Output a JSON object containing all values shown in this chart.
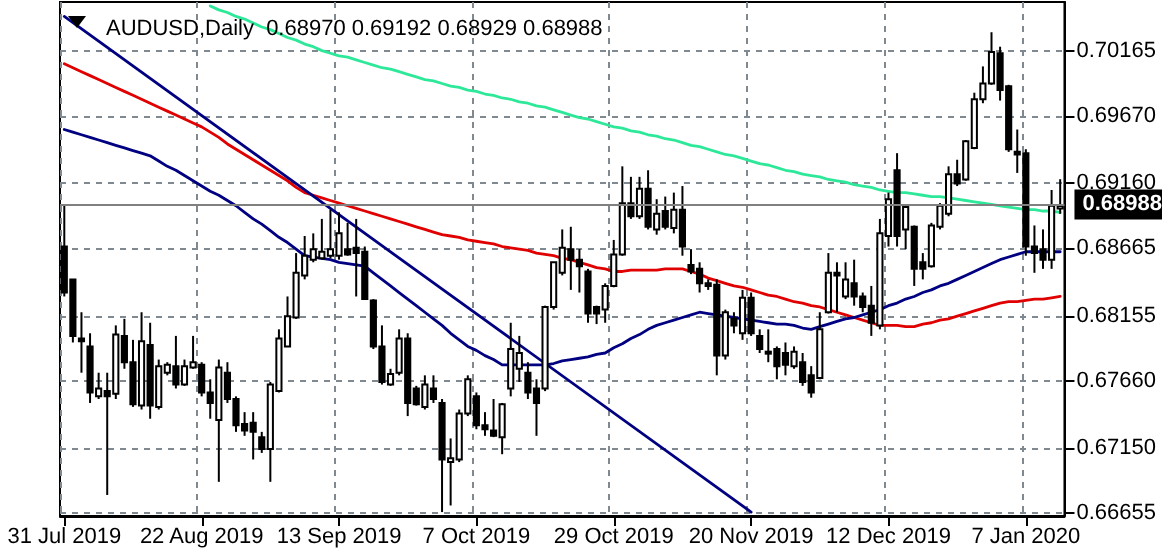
{
  "chart_data": {
    "type": "candlestick",
    "title": "AUDUSD,Daily  0.68970 0.69192 0.68929 0.68988",
    "categories": [
      "31 Jul 2019",
      null,
      null,
      null,
      null,
      null,
      null,
      null,
      null,
      null,
      null,
      null,
      null,
      null,
      null,
      null,
      "22 Aug 2019",
      null,
      null,
      null,
      null,
      null,
      null,
      null,
      null,
      null,
      null,
      null,
      null,
      null,
      null,
      null,
      "13 Sep 2019",
      null,
      null,
      null,
      null,
      null,
      null,
      null,
      null,
      null,
      null,
      null,
      null,
      null,
      null,
      null,
      "7 Oct 2019",
      null,
      null,
      null,
      null,
      null,
      null,
      null,
      null,
      null,
      null,
      null,
      null,
      null,
      null,
      null,
      "29 Oct 2019",
      null,
      null,
      null,
      null,
      null,
      null,
      null,
      null,
      null,
      null,
      null,
      null,
      null,
      null,
      null,
      "20 Nov 2019",
      null,
      null,
      null,
      null,
      null,
      null,
      null,
      null,
      null,
      null,
      null,
      null,
      null,
      null,
      null,
      "12 Dec 2019",
      null,
      null,
      null,
      null,
      null,
      null,
      null,
      null,
      null,
      null,
      null,
      null,
      null,
      null,
      null,
      "7 Jan 2020",
      null,
      null,
      null,
      null
    ],
    "ohlc": [
      [
        0.6868,
        0.6899,
        0.683,
        0.6833
      ],
      [
        0.6843,
        0.6843,
        0.6795,
        0.68
      ],
      [
        0.6798,
        0.6818,
        0.6772,
        0.6796
      ],
      [
        0.6792,
        0.6802,
        0.6749,
        0.6757
      ],
      [
        0.6754,
        0.6772,
        0.6752,
        0.676
      ],
      [
        0.6758,
        0.6772,
        0.6679,
        0.6754
      ],
      [
        0.6756,
        0.6808,
        0.6752,
        0.6801
      ],
      [
        0.68,
        0.6813,
        0.6775,
        0.678
      ],
      [
        0.678,
        0.6797,
        0.6746,
        0.6748
      ],
      [
        0.6747,
        0.6818,
        0.6744,
        0.6796
      ],
      [
        0.6793,
        0.681,
        0.6737,
        0.6747
      ],
      [
        0.6746,
        0.6782,
        0.6744,
        0.6777
      ],
      [
        0.6772,
        0.678,
        0.677,
        0.6778
      ],
      [
        0.6777,
        0.68,
        0.676,
        0.6763
      ],
      [
        0.6763,
        0.6782,
        0.6762,
        0.6777
      ],
      [
        0.6776,
        0.68,
        0.6775,
        0.678
      ],
      [
        0.6778,
        0.678,
        0.6754,
        0.6757
      ],
      [
        0.6757,
        0.6767,
        0.6737,
        0.6749
      ],
      [
        0.6736,
        0.6782,
        0.6689,
        0.6776
      ],
      [
        0.6772,
        0.678,
        0.6749,
        0.6752
      ],
      [
        0.6752,
        0.6754,
        0.6727,
        0.6732
      ],
      [
        0.6733,
        0.6742,
        0.6724,
        0.6728
      ],
      [
        0.6734,
        0.6742,
        0.6706,
        0.6727
      ],
      [
        0.6723,
        0.6727,
        0.6711,
        0.6714
      ],
      [
        0.6714,
        0.6765,
        0.6689,
        0.6763
      ],
      [
        0.6758,
        0.6805,
        0.6757,
        0.6798
      ],
      [
        0.6792,
        0.683,
        0.6792,
        0.6815
      ],
      [
        0.6814,
        0.6863,
        0.6813,
        0.6848
      ],
      [
        0.6846,
        0.6876,
        0.6843,
        0.6861
      ],
      [
        0.6858,
        0.6878,
        0.6856,
        0.6866
      ],
      [
        0.6859,
        0.6889,
        0.6858,
        0.6864
      ],
      [
        0.6861,
        0.6896,
        0.6859,
        0.6866
      ],
      [
        0.6861,
        0.6894,
        0.6858,
        0.6878
      ],
      [
        0.6866,
        0.6886,
        0.6861,
        0.6862
      ],
      [
        0.6867,
        0.6889,
        0.683,
        0.6863
      ],
      [
        0.6864,
        0.6868,
        0.6828,
        0.6828
      ],
      [
        0.6827,
        0.6828,
        0.679,
        0.6792
      ],
      [
        0.6792,
        0.6808,
        0.6763,
        0.6765
      ],
      [
        0.6763,
        0.6775,
        0.6762,
        0.6771
      ],
      [
        0.6772,
        0.6805,
        0.677,
        0.6798
      ],
      [
        0.6798,
        0.6802,
        0.6739,
        0.6749
      ],
      [
        0.676,
        0.6762,
        0.6747,
        0.6748
      ],
      [
        0.6746,
        0.677,
        0.6744,
        0.6763
      ],
      [
        0.676,
        0.677,
        0.6749,
        0.6752
      ],
      [
        0.6749,
        0.6752,
        0.6666,
        0.6706
      ],
      [
        0.6704,
        0.6722,
        0.6671,
        0.6707
      ],
      [
        0.6706,
        0.6744,
        0.6704,
        0.6741
      ],
      [
        0.6741,
        0.677,
        0.6739,
        0.6767
      ],
      [
        0.6754,
        0.6757,
        0.6729,
        0.6732
      ],
      [
        0.6732,
        0.6742,
        0.6724,
        0.6729
      ],
      [
        0.6728,
        0.6752,
        0.6723,
        0.6724
      ],
      [
        0.6723,
        0.6749,
        0.671,
        0.6748
      ],
      [
        0.676,
        0.681,
        0.6754,
        0.679
      ],
      [
        0.6775,
        0.68,
        0.6765,
        0.6787
      ],
      [
        0.6772,
        0.678,
        0.6752,
        0.6757
      ],
      [
        0.676,
        0.6767,
        0.6724,
        0.6749
      ],
      [
        0.676,
        0.6823,
        0.6758,
        0.6822
      ],
      [
        0.6822,
        0.6856,
        0.682,
        0.6856
      ],
      [
        0.6848,
        0.6881,
        0.6846,
        0.6867
      ],
      [
        0.6866,
        0.6883,
        0.6835,
        0.6858
      ],
      [
        0.6858,
        0.6866,
        0.6833,
        0.6853
      ],
      [
        0.6849,
        0.6851,
        0.681,
        0.6817
      ],
      [
        0.6822,
        0.6823,
        0.6809,
        0.6817
      ],
      [
        0.682,
        0.684,
        0.681,
        0.6838
      ],
      [
        0.6838,
        0.6873,
        0.6837,
        0.6862
      ],
      [
        0.6862,
        0.6929,
        0.6861,
        0.6901
      ],
      [
        0.6901,
        0.6921,
        0.6889,
        0.6891
      ],
      [
        0.6891,
        0.6921,
        0.6889,
        0.6912
      ],
      [
        0.6912,
        0.6926,
        0.6881,
        0.6883
      ],
      [
        0.6881,
        0.6904,
        0.6877,
        0.6893
      ],
      [
        0.6895,
        0.6906,
        0.6881,
        0.6883
      ],
      [
        0.6882,
        0.6909,
        0.6878,
        0.6896
      ],
      [
        0.6896,
        0.6914,
        0.6861,
        0.6868
      ],
      [
        0.6854,
        0.6866,
        0.6847,
        0.6849
      ],
      [
        0.6851,
        0.6856,
        0.6833,
        0.684
      ],
      [
        0.684,
        0.6843,
        0.6835,
        0.6838
      ],
      [
        0.6839,
        0.6843,
        0.677,
        0.6785
      ],
      [
        0.6785,
        0.682,
        0.6782,
        0.6818
      ],
      [
        0.6813,
        0.6818,
        0.6802,
        0.6808
      ],
      [
        0.6802,
        0.6835,
        0.6797,
        0.6829
      ],
      [
        0.6829,
        0.6833,
        0.68,
        0.6802
      ],
      [
        0.68,
        0.6805,
        0.6787,
        0.679
      ],
      [
        0.6788,
        0.6805,
        0.678,
        0.6787
      ],
      [
        0.679,
        0.6792,
        0.6767,
        0.6777
      ],
      [
        0.6787,
        0.6795,
        0.677,
        0.6778
      ],
      [
        0.6777,
        0.6792,
        0.6775,
        0.6788
      ],
      [
        0.678,
        0.6787,
        0.6762,
        0.6765
      ],
      [
        0.677,
        0.6777,
        0.6753,
        0.6757
      ],
      [
        0.6768,
        0.6818,
        0.6767,
        0.6805
      ],
      [
        0.6818,
        0.6863,
        0.6817,
        0.6848
      ],
      [
        0.6848,
        0.6856,
        0.6818,
        0.6846
      ],
      [
        0.683,
        0.6856,
        0.6828,
        0.6843
      ],
      [
        0.684,
        0.6858,
        0.6823,
        0.683
      ],
      [
        0.683,
        0.6833,
        0.6818,
        0.6822
      ],
      [
        0.6823,
        0.6838,
        0.68,
        0.681
      ],
      [
        0.6808,
        0.6889,
        0.6805,
        0.6878
      ],
      [
        0.6876,
        0.6909,
        0.6868,
        0.6904
      ],
      [
        0.6926,
        0.6939,
        0.6868,
        0.6876
      ],
      [
        0.6881,
        0.6899,
        0.6866,
        0.6898
      ],
      [
        0.6883,
        0.6884,
        0.6838,
        0.6851
      ],
      [
        0.6856,
        0.6863,
        0.6843,
        0.6851
      ],
      [
        0.6853,
        0.6886,
        0.6852,
        0.6884
      ],
      [
        0.6883,
        0.6901,
        0.6881,
        0.6899
      ],
      [
        0.6893,
        0.6929,
        0.6891,
        0.6923
      ],
      [
        0.6923,
        0.6934,
        0.6914,
        0.6916
      ],
      [
        0.6919,
        0.6949,
        0.6918,
        0.6948
      ],
      [
        0.6943,
        0.6985,
        0.6942,
        0.698
      ],
      [
        0.698,
        0.7005,
        0.6977,
        0.6992
      ],
      [
        0.6992,
        0.7031,
        0.6991,
        0.7016
      ],
      [
        0.7015,
        0.702,
        0.6979,
        0.6987
      ],
      [
        0.699,
        0.6991,
        0.694,
        0.6942
      ],
      [
        0.694,
        0.6957,
        0.6924,
        0.6938
      ],
      [
        0.6939,
        0.6942,
        0.6861,
        0.6868
      ],
      [
        0.6868,
        0.6884,
        0.6848,
        0.6863
      ],
      [
        0.6866,
        0.6881,
        0.6851,
        0.6858
      ],
      [
        0.6858,
        0.6911,
        0.6851,
        0.6899
      ],
      [
        0.6897,
        0.69192,
        0.68929,
        0.68988
      ]
    ],
    "series": [
      {
        "type": "line",
        "color": "#2ee89a",
        "values": [
          null,
          null,
          null,
          null,
          null,
          null,
          null,
          null,
          null,
          null,
          null,
          null,
          null,
          null,
          null,
          null,
          null,
          0.7051,
          0.7048,
          0.7046,
          0.7043,
          0.7041,
          0.7038,
          0.7035,
          0.7033,
          0.703,
          0.7027,
          0.7025,
          0.7022,
          0.702,
          0.7017,
          0.7015,
          0.7013,
          0.7012,
          0.701,
          0.7008,
          0.7006,
          0.7004,
          0.7003,
          0.7001,
          0.6999,
          0.6997,
          0.6995,
          0.6994,
          0.6992,
          0.699,
          0.6989,
          0.6987,
          0.6986,
          0.6984,
          0.6983,
          0.6981,
          0.698,
          0.6978,
          0.6977,
          0.6975,
          0.6974,
          0.6972,
          0.697,
          0.6968,
          0.6966,
          0.6965,
          0.6963,
          0.6961,
          0.6959,
          0.6958,
          0.6956,
          0.6955,
          0.6953,
          0.6952,
          0.695,
          0.6949,
          0.6947,
          0.6945,
          0.6944,
          0.6942,
          0.694,
          0.6938,
          0.6937,
          0.6935,
          0.6933,
          0.6931,
          0.693,
          0.6928,
          0.6926,
          0.6925,
          0.6923,
          0.6922,
          0.6921,
          0.6919,
          0.6918,
          0.6917,
          0.6915,
          0.6914,
          0.6913,
          0.6911,
          0.691,
          0.6909,
          0.6909,
          0.6908,
          0.6907,
          0.6906,
          0.6906,
          0.6905,
          0.6904,
          0.6903,
          0.6902,
          0.6901,
          0.69,
          0.6899,
          0.6898,
          0.6897,
          0.6896,
          0.6896,
          0.6895,
          0.6895,
          0.6894
        ]
      },
      {
        "type": "line",
        "color": "#e00000",
        "values": [
          0.7007,
          0.7004,
          0.7001,
          0.6998,
          0.6995,
          0.6992,
          0.6989,
          0.6986,
          0.6983,
          0.698,
          0.6977,
          0.6974,
          0.6971,
          0.6968,
          0.6965,
          0.6962,
          0.6959,
          0.6955,
          0.6951,
          0.6946,
          0.6942,
          0.6938,
          0.6934,
          0.693,
          0.6926,
          0.6922,
          0.6918,
          0.6913,
          0.6909,
          0.6907,
          0.6905,
          0.6903,
          0.6901,
          0.6899,
          0.6897,
          0.6895,
          0.6893,
          0.6891,
          0.6889,
          0.6887,
          0.6885,
          0.6883,
          0.6881,
          0.6879,
          0.6877,
          0.6876,
          0.6875,
          0.6873,
          0.6872,
          0.6871,
          0.687,
          0.6868,
          0.6867,
          0.6866,
          0.6865,
          0.6863,
          0.6862,
          0.6861,
          0.6859,
          0.6858,
          0.6856,
          0.6854,
          0.6852,
          0.6851,
          0.6849,
          0.6849,
          0.685,
          0.685,
          0.685,
          0.685,
          0.6851,
          0.6851,
          0.6851,
          0.6849,
          0.6847,
          0.6844,
          0.6842,
          0.684,
          0.6838,
          0.6837,
          0.6835,
          0.6833,
          0.6831,
          0.683,
          0.6828,
          0.6826,
          0.6825,
          0.6823,
          0.6822,
          0.682,
          0.6818,
          0.6816,
          0.6814,
          0.6812,
          0.681,
          0.6808,
          0.6808,
          0.6808,
          0.6807,
          0.6807,
          0.6809,
          0.681,
          0.6812,
          0.6813,
          0.6815,
          0.6817,
          0.6819,
          0.6821,
          0.6823,
          0.6825,
          0.6826,
          0.6826,
          0.6827,
          0.6828,
          0.6828,
          0.6829,
          0.683
        ]
      },
      {
        "type": "line",
        "color": "#000080",
        "values": [
          0.6957,
          0.6955,
          0.6953,
          0.6951,
          0.6949,
          0.6947,
          0.6945,
          0.6943,
          0.6941,
          0.6939,
          0.6937,
          0.6933,
          0.6929,
          0.6926,
          0.6922,
          0.6918,
          0.6914,
          0.691,
          0.6907,
          0.6903,
          0.6899,
          0.6894,
          0.6889,
          0.6885,
          0.688,
          0.6875,
          0.6871,
          0.6866,
          0.6861,
          0.686,
          0.6859,
          0.6858,
          0.6856,
          0.6855,
          0.6854,
          0.6853,
          0.6848,
          0.6843,
          0.6838,
          0.6833,
          0.6828,
          0.6823,
          0.6818,
          0.6813,
          0.6808,
          0.6802,
          0.6797,
          0.6792,
          0.6789,
          0.6785,
          0.6782,
          0.6778,
          0.6778,
          0.6778,
          0.6778,
          0.6778,
          0.6778,
          0.6779,
          0.6781,
          0.6782,
          0.6783,
          0.6784,
          0.6786,
          0.6787,
          0.6791,
          0.6794,
          0.6798,
          0.6801,
          0.6805,
          0.6808,
          0.681,
          0.6812,
          0.6814,
          0.6816,
          0.6818,
          0.6817,
          0.6816,
          0.6815,
          0.6814,
          0.6813,
          0.6812,
          0.6811,
          0.681,
          0.6809,
          0.6809,
          0.6808,
          0.6806,
          0.6805,
          0.6807,
          0.6809,
          0.6811,
          0.6813,
          0.6814,
          0.6816,
          0.6818,
          0.682,
          0.6823,
          0.6825,
          0.6828,
          0.683,
          0.6833,
          0.6835,
          0.6838,
          0.684,
          0.6843,
          0.6846,
          0.6849,
          0.6852,
          0.6855,
          0.6858,
          0.686,
          0.6862,
          0.6864,
          0.6864,
          0.6864,
          0.6864,
          0.6864
        ]
      },
      {
        "type": "line",
        "color": "#000080",
        "x": [
          "31 Jul 2019",
          "20 Nov 2019"
        ],
        "values": [
          0.7043,
          0.6666
        ]
      }
    ],
    "ylim": [
      0.6663,
      0.7054
    ],
    "yticks": [
      0.66655,
      {
        "value": 0.6715,
        "label": "0.67150"
      },
      {
        "value": 0.6766,
        "label": "0.67660"
      },
      0.68155,
      0.68665,
      {
        "value": 0.6916,
        "label": "0.69160"
      },
      {
        "value": 0.6967,
        "label": "0.69670"
      },
      0.70165
    ],
    "ref_lines": [
      {
        "axis": "y",
        "value": 0.68988,
        "label": "0.68988",
        "color": "#808080",
        "line_style": "solid"
      }
    ],
    "grid": true,
    "marker": "none",
    "line_style": "solid"
  }
}
